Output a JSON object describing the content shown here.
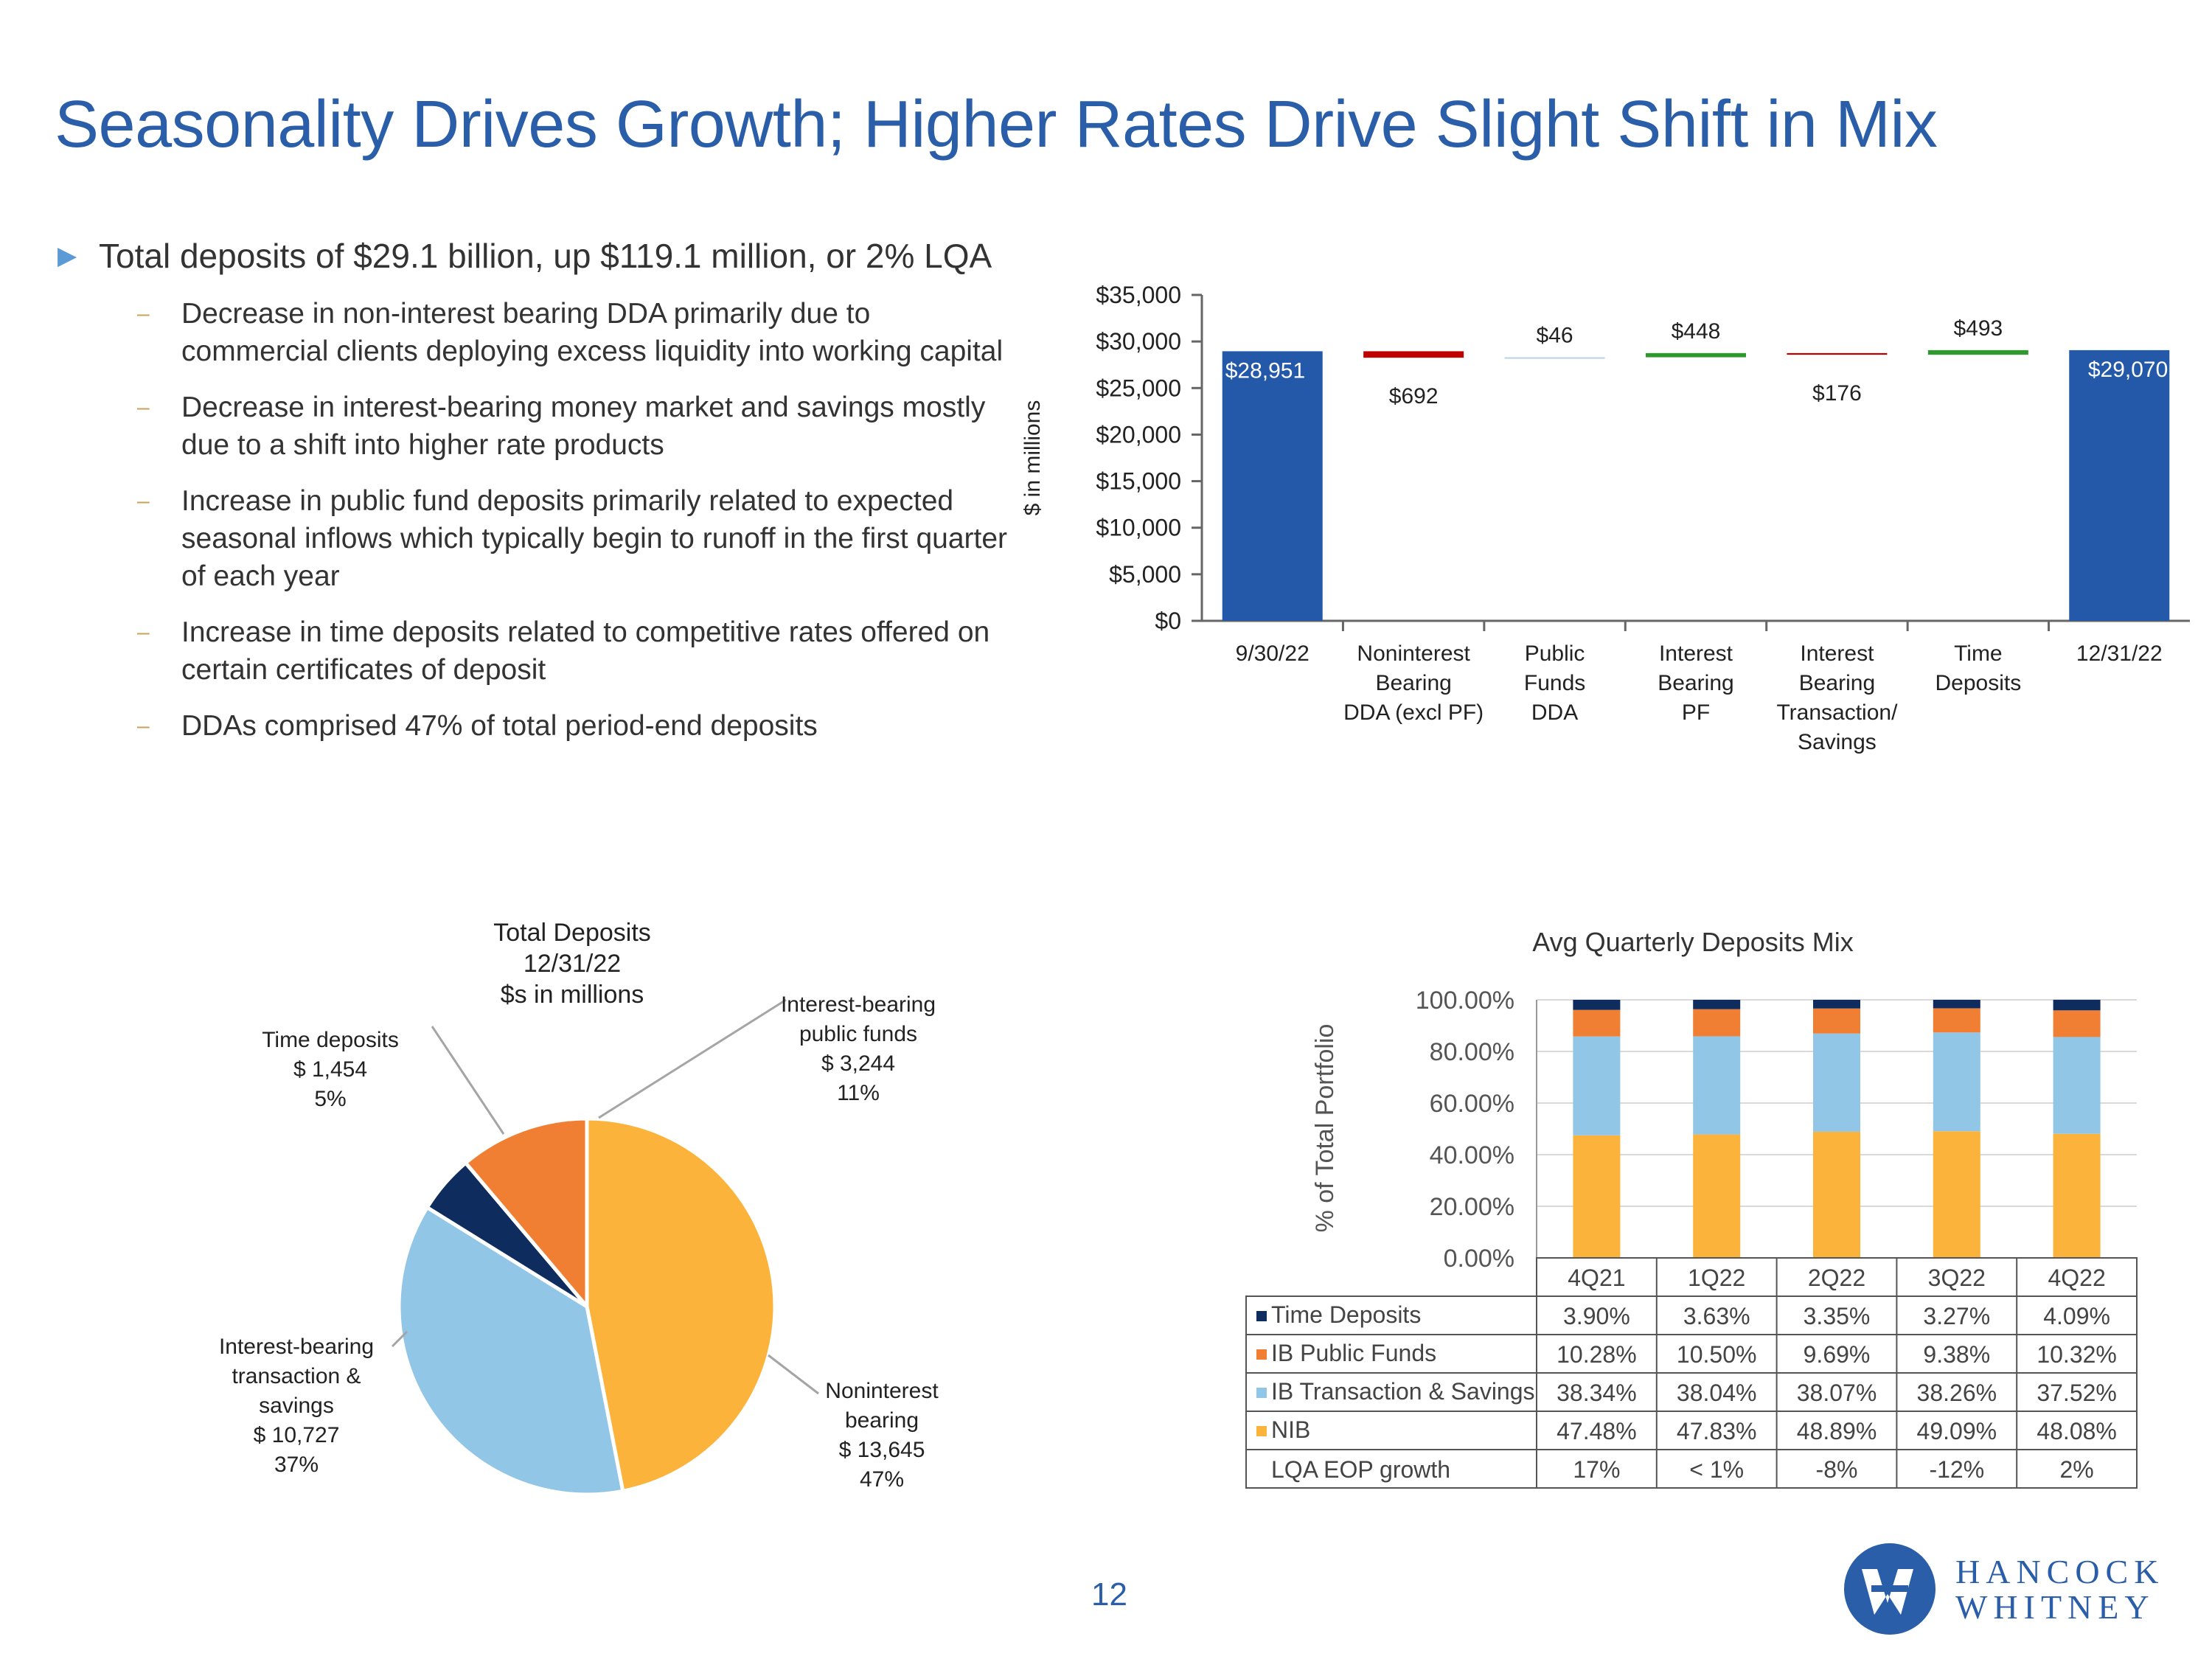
{
  "title": "Seasonality Drives Growth; Higher Rates Drive Slight Shift in Mix",
  "bullets": {
    "main": "Total deposits of $29.1 billion, up $119.1 million, or 2% LQA",
    "subs": [
      "Decrease in non-interest bearing DDA primarily due to commercial clients deploying excess liquidity into working capital",
      "Decrease in interest-bearing money market and savings mostly due to a shift into higher rate products",
      "Increase in public fund deposits primarily related to expected seasonal inflows which typically begin to runoff in the first quarter of each year",
      "Increase in time deposits related to competitive rates offered on certain certificates of deposit",
      "DDAs comprised 47% of total period-end deposits"
    ]
  },
  "page_number": "12",
  "logo": {
    "line1": "HANCOCK",
    "line2": "WHITNEY"
  },
  "colors": {
    "blue": "#2a5ea8",
    "bar_blue": "#2359a8",
    "dec_red": "#c00000",
    "inc_green": "#2e9a2e",
    "noninterest": "#fbb33b",
    "ib_transaction": "#92c6e6",
    "ib_public": "#f07f34",
    "time": "#0e2c5e"
  },
  "chart_data": [
    {
      "type": "bar",
      "subtype": "waterfall",
      "title": "",
      "xlabel": "",
      "ylabel": "$ in millions",
      "ylim": [
        0,
        35000
      ],
      "yticks": [
        0,
        5000,
        10000,
        15000,
        20000,
        25000,
        30000,
        35000
      ],
      "ytick_labels": [
        "$0",
        "$5,000",
        "$10,000",
        "$15,000",
        "$20,000",
        "$25,000",
        "$30,000",
        "$35,000"
      ],
      "categories": [
        "9/30/22",
        "Noninterest Bearing DDA (excl PF)",
        "Public Funds DDA",
        "Interest Bearing PF",
        "Interest Bearing Transaction/ Savings",
        "Time Deposits",
        "12/31/22"
      ],
      "category_lines": [
        [
          "9/30/22"
        ],
        [
          "Noninterest",
          "Bearing",
          "DDA (excl PF)"
        ],
        [
          "Public",
          "Funds",
          "DDA"
        ],
        [
          "Interest",
          "Bearing",
          "PF"
        ],
        [
          "Interest",
          "Bearing",
          "Transaction/",
          "Savings"
        ],
        [
          "Time",
          "Deposits"
        ],
        [
          "12/31/22"
        ]
      ],
      "values": [
        28951,
        -692,
        46,
        448,
        -176,
        493,
        29070
      ],
      "kinds": [
        "total",
        "decrease",
        "increase",
        "increase",
        "decrease",
        "increase",
        "total"
      ],
      "data_labels": [
        "$28,951",
        "$692",
        "$46",
        "$448",
        "$176",
        "$493",
        "$29,070"
      ]
    },
    {
      "type": "pie",
      "title_lines": [
        "Total Deposits",
        "12/31/22",
        "$s in millions"
      ],
      "slices": [
        {
          "name": "Noninterest bearing",
          "label_lines": [
            "Noninterest",
            "bearing",
            "$ 13,645",
            "47%"
          ],
          "value": 13645,
          "percent": 47,
          "color": "#fbb33b"
        },
        {
          "name": "Interest-bearing transaction & savings",
          "label_lines": [
            "Interest-bearing",
            "transaction &",
            "savings",
            "$ 10,727",
            "37%"
          ],
          "value": 10727,
          "percent": 37,
          "color": "#92c6e6"
        },
        {
          "name": "Time deposits",
          "label_lines": [
            "Time deposits",
            "$ 1,454",
            "5%"
          ],
          "value": 1454,
          "percent": 5,
          "color": "#0e2c5e"
        },
        {
          "name": "Interest-bearing public funds",
          "label_lines": [
            "Interest-bearing",
            "public funds",
            "$ 3,244",
            "11%"
          ],
          "value": 3244,
          "percent": 11,
          "color": "#f07f34"
        }
      ]
    },
    {
      "type": "bar",
      "subtype": "stacked-percent",
      "title": "Avg Quarterly Deposits Mix",
      "ylabel": "% of Total Portfolio",
      "ylim": [
        0,
        100
      ],
      "yticks": [
        0,
        20,
        40,
        60,
        80,
        100
      ],
      "ytick_labels": [
        "0.00%",
        "20.00%",
        "40.00%",
        "60.00%",
        "80.00%",
        "100.00%"
      ],
      "categories": [
        "4Q21",
        "1Q22",
        "2Q22",
        "3Q22",
        "4Q22"
      ],
      "series": [
        {
          "name": "NIB",
          "color": "#fbb33b",
          "values": [
            47.48,
            47.83,
            48.89,
            49.09,
            48.08
          ],
          "labels": [
            "47.48%",
            "47.83%",
            "48.89%",
            "49.09%",
            "48.08%"
          ]
        },
        {
          "name": "IB Transaction & Savings",
          "color": "#92c6e6",
          "values": [
            38.34,
            38.04,
            38.07,
            38.26,
            37.52
          ],
          "labels": [
            "38.34%",
            "38.04%",
            "38.07%",
            "38.26%",
            "37.52%"
          ]
        },
        {
          "name": "IB Public Funds",
          "color": "#f07f34",
          "values": [
            10.28,
            10.5,
            9.69,
            9.38,
            10.32
          ],
          "labels": [
            "10.28%",
            "10.50%",
            "9.69%",
            "9.38%",
            "10.32%"
          ]
        },
        {
          "name": "Time Deposits",
          "color": "#0e2c5e",
          "values": [
            3.9,
            3.63,
            3.35,
            3.27,
            4.09
          ],
          "labels": [
            "3.90%",
            "3.63%",
            "3.35%",
            "3.27%",
            "4.09%"
          ]
        }
      ],
      "table_row_order": [
        "Time Deposits",
        "IB Public Funds",
        "IB Transaction & Savings",
        "NIB"
      ],
      "growth_row": {
        "name": "LQA EOP growth",
        "values": [
          "17%",
          "< 1%",
          "-8%",
          "-12%",
          "2%"
        ]
      }
    }
  ]
}
